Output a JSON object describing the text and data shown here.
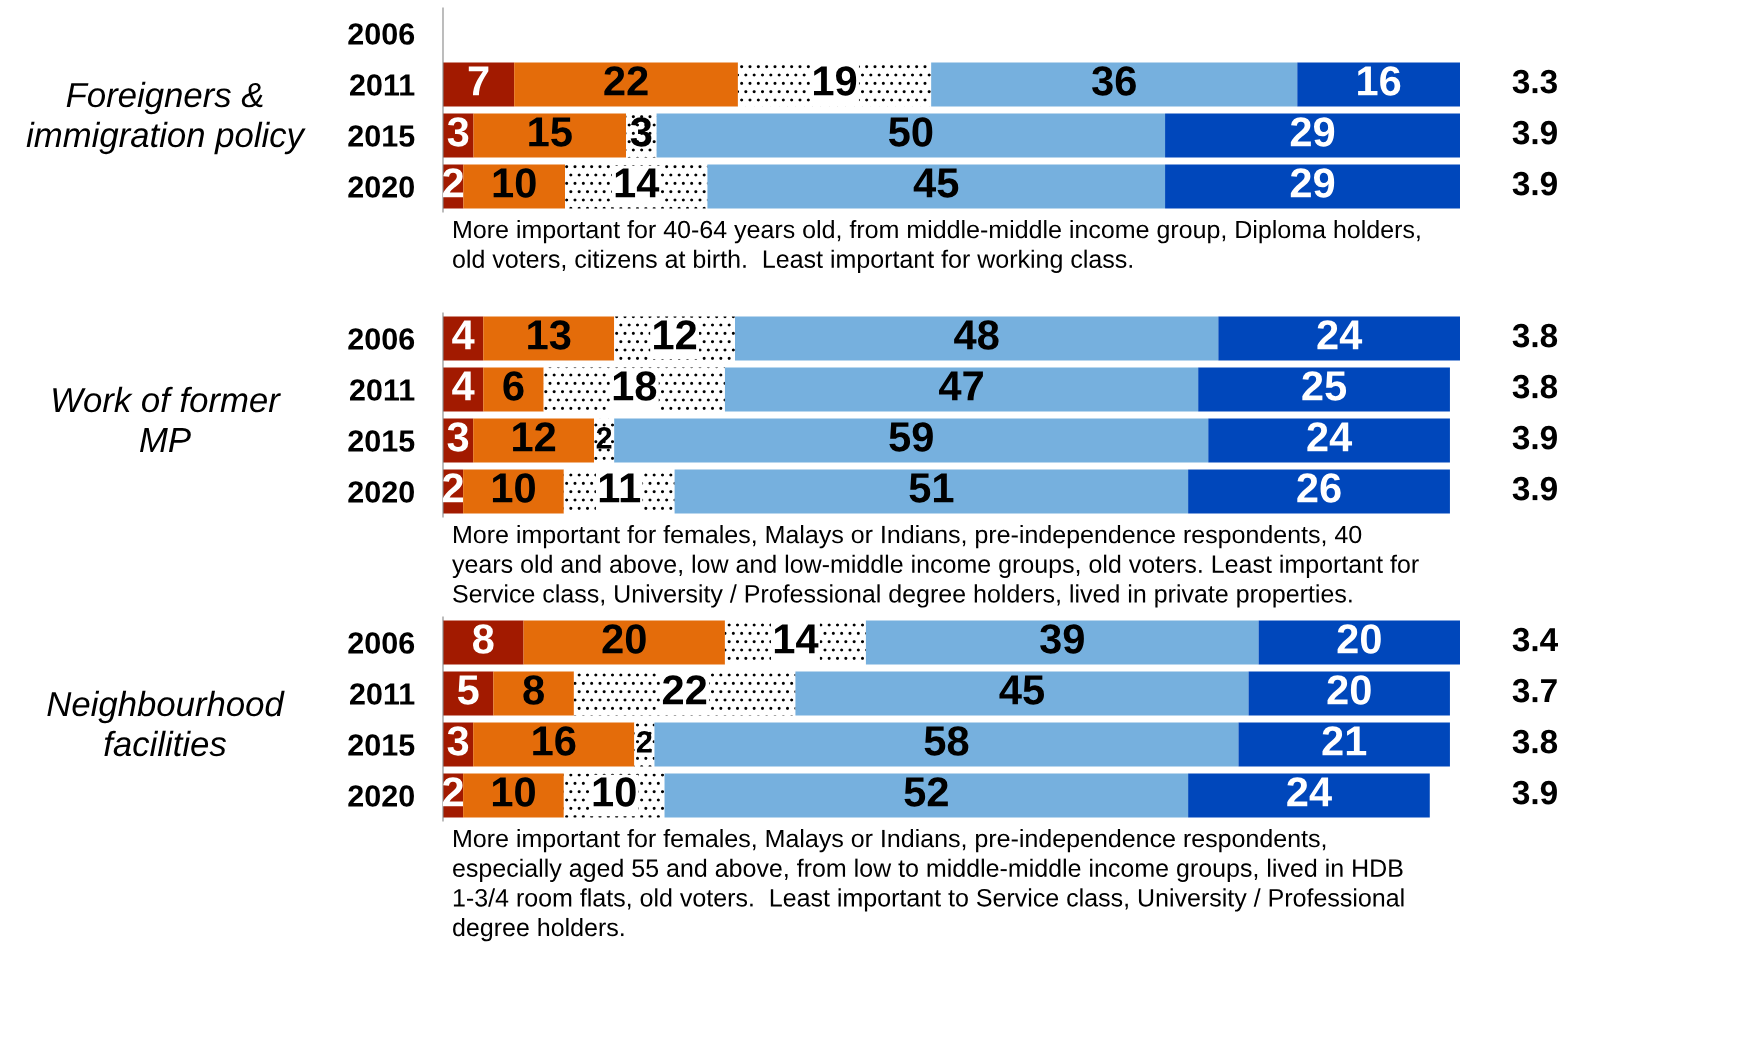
{
  "chart_data": [
    {
      "type": "bar",
      "orientation": "horizontal",
      "stacked": true,
      "data_labels": true,
      "grid": false,
      "legend": false,
      "tick_labels": "y",
      "title": "Foreigners &\nimmigration policy",
      "categories": [
        "2006",
        "2011",
        "2015",
        "2020"
      ],
      "series": [
        {
          "color": "#a21a00",
          "values": [
            null,
            7,
            3,
            2
          ]
        },
        {
          "color": "#e46c0a",
          "values": [
            null,
            22,
            15,
            10
          ]
        },
        {
          "color": "#ffffff",
          "values": [
            null,
            19,
            3,
            14
          ]
        },
        {
          "color": "#76b0de",
          "values": [
            null,
            36,
            50,
            45
          ]
        },
        {
          "color": "#0047bb",
          "values": [
            null,
            16,
            29,
            29
          ]
        }
      ],
      "annotations": [
        "3.3",
        "3.9",
        "3.9",
        "More important for 40-64 years old, from middle-middle income group, Diploma holders,\nold voters, citizens at birth.  Least important for working class."
      ]
    },
    {
      "type": "bar",
      "orientation": "horizontal",
      "stacked": true,
      "data_labels": true,
      "grid": false,
      "legend": false,
      "tick_labels": "y",
      "title": "Work of former\nMP",
      "categories": [
        "2006",
        "2011",
        "2015",
        "2020"
      ],
      "series": [
        {
          "color": "#a21a00",
          "values": [
            4,
            4,
            3,
            2
          ]
        },
        {
          "color": "#e46c0a",
          "values": [
            13,
            6,
            12,
            10
          ]
        },
        {
          "color": "#ffffff",
          "values": [
            12,
            18,
            2,
            11
          ]
        },
        {
          "color": "#76b0de",
          "values": [
            48,
            47,
            59,
            51
          ]
        },
        {
          "color": "#0047bb",
          "values": [
            24,
            25,
            24,
            26
          ]
        }
      ],
      "annotations": [
        "3.8",
        "3.8",
        "3.9",
        "3.9",
        "More important for females, Malays or Indians, pre-independence respondents, 40\nyears old and above, low and low-middle income groups, old voters. Least important for\nService class, University / Professional degree holders, lived in private properties."
      ]
    },
    {
      "type": "bar",
      "orientation": "horizontal",
      "stacked": true,
      "data_labels": true,
      "grid": false,
      "legend": false,
      "tick_labels": "y",
      "title": "Neighbourhood\nfacilities",
      "categories": [
        "2006",
        "2011",
        "2015",
        "2020"
      ],
      "series": [
        {
          "color": "#a21a00",
          "values": [
            8,
            5,
            3,
            2
          ]
        },
        {
          "color": "#e46c0a",
          "values": [
            20,
            8,
            16,
            10
          ]
        },
        {
          "color": "#ffffff",
          "values": [
            14,
            22,
            2,
            10
          ]
        },
        {
          "color": "#76b0de",
          "values": [
            39,
            45,
            58,
            52
          ]
        },
        {
          "color": "#0047bb",
          "values": [
            20,
            20,
            21,
            24
          ]
        }
      ],
      "annotations": [
        "3.4",
        "3.7",
        "3.8",
        "3.9",
        "More important for females, Malays or Indians, pre-independence respondents,\nespecially aged 55 and above, from low to middle-middle income groups, lived in HDB\n1-3/4 room flats, old voters.  Least important to Service class, University / Professional\ndegree holders."
      ]
    }
  ]
}
